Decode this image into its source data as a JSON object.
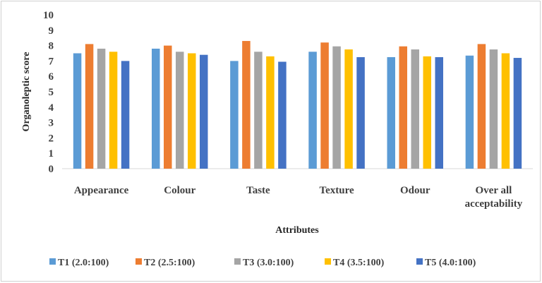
{
  "chart_data": {
    "type": "bar",
    "title": "",
    "xlabel": "Attributes",
    "ylabel": "Organoleptic score",
    "ylim": [
      0,
      10
    ],
    "yticks": [
      0,
      1,
      2,
      3,
      4,
      5,
      6,
      7,
      8,
      9,
      10
    ],
    "grid": false,
    "legend_position": "bottom",
    "categories": [
      [
        "Appearance"
      ],
      [
        "Colour"
      ],
      [
        "Taste"
      ],
      [
        "Texture"
      ],
      [
        "Odour"
      ],
      [
        "Over all",
        "acceptability"
      ]
    ],
    "series": [
      {
        "name": "T1 (2.0:100)",
        "color": "#5b9bd5",
        "values": [
          7.5,
          7.8,
          7.0,
          7.6,
          7.25,
          7.35
        ]
      },
      {
        "name": "T2 (2.5:100)",
        "color": "#ed7d31",
        "values": [
          8.1,
          8.0,
          8.3,
          8.2,
          7.95,
          8.1
        ]
      },
      {
        "name": "T3 (3.0:100)",
        "color": "#a5a5a5",
        "values": [
          7.8,
          7.6,
          7.6,
          7.95,
          7.75,
          7.75
        ]
      },
      {
        "name": "T4 (3.5:100)",
        "color": "#ffc000",
        "values": [
          7.6,
          7.5,
          7.3,
          7.75,
          7.3,
          7.5
        ]
      },
      {
        "name": "T5 (4.0:100)",
        "color": "#4472c4",
        "values": [
          7.0,
          7.4,
          6.95,
          7.25,
          7.25,
          7.2
        ]
      }
    ]
  }
}
